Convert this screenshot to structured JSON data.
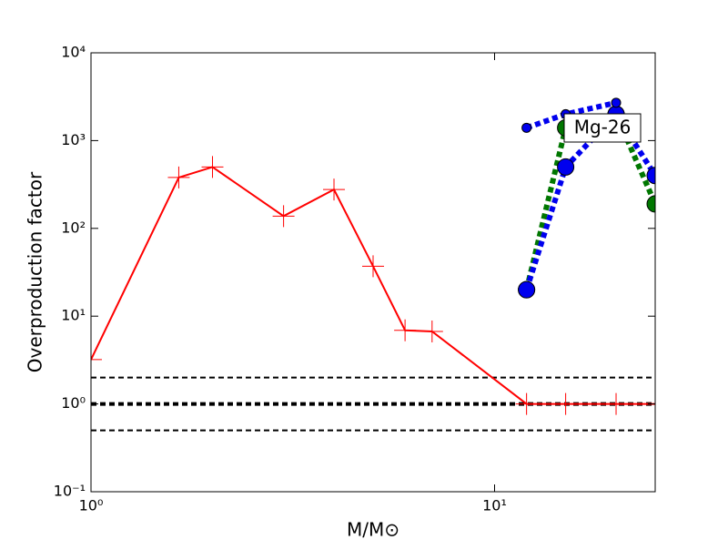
{
  "chart_data": {
    "type": "line",
    "xlabel": "M/M⊙",
    "ylabel": "Overproduction factor",
    "xscale": "log",
    "yscale": "log",
    "xlim": [
      1,
      25
    ],
    "ylim": [
      0.1,
      10000
    ],
    "xticks": [
      {
        "value": 1,
        "label": "10⁰"
      },
      {
        "value": 10,
        "label": "10¹"
      }
    ],
    "yticks": [
      {
        "value": 0.1,
        "label": "10⁻¹"
      },
      {
        "value": 1,
        "label": "10⁰"
      },
      {
        "value": 10,
        "label": "10¹"
      },
      {
        "value": 100,
        "label": "10²"
      },
      {
        "value": 1000,
        "label": "10³"
      },
      {
        "value": 10000,
        "label": "10⁴"
      }
    ],
    "series": [
      {
        "color": "#ff0000",
        "linestyle": "solid",
        "marker": "plus",
        "x": [
          1,
          1.65,
          2,
          3,
          4,
          5,
          6,
          7,
          12,
          15,
          20,
          25
        ],
        "values": [
          3.2,
          380,
          500,
          138,
          277,
          37,
          6.9,
          6.7,
          1,
          1,
          1,
          1
        ]
      },
      {
        "color": "#007700",
        "linestyle": "dotted",
        "marker": "circle",
        "x": [
          12,
          15,
          20,
          25
        ],
        "values": [
          20,
          1400,
          2000,
          190
        ]
      },
      {
        "color": "#0000ee",
        "linestyle": "dotted",
        "marker": "circle",
        "x": [
          12,
          15,
          20,
          25
        ],
        "values": [
          20,
          500,
          2000,
          400
        ]
      },
      {
        "color": "#0000ee",
        "linestyle": "dotted",
        "marker": "small-circle",
        "x": [
          12,
          15,
          20
        ],
        "values": [
          1400,
          2000,
          2700
        ]
      }
    ],
    "hlines": [
      {
        "value": 2,
        "width": 2
      },
      {
        "value": 1,
        "width": 4
      },
      {
        "value": 0.5,
        "width": 2
      }
    ],
    "annotation": "Mg-26"
  }
}
